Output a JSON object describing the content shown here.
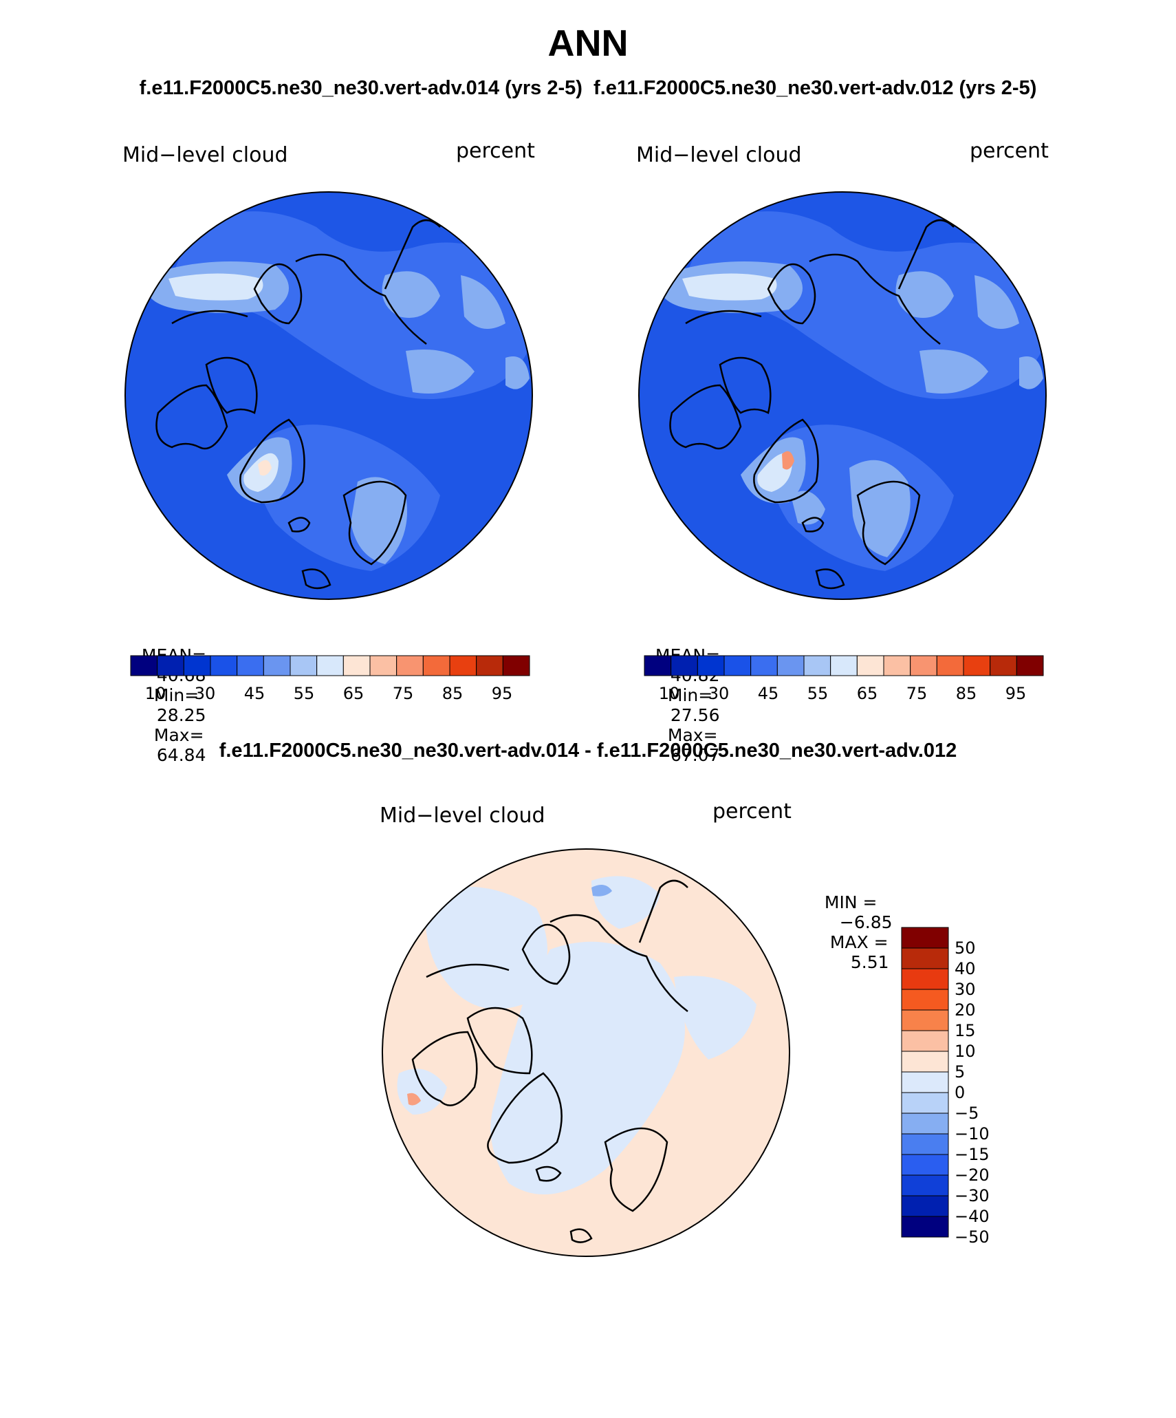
{
  "header": {
    "title": "ANN",
    "subtitle": "f.e11.F2000C5.ne30_ne30.vert-adv.014 (yrs 2-5)  f.e11.F2000C5.ne30_ne30.vert-adv.012 (yrs 2-5)",
    "diff_title": "f.e11.F2000C5.ne30_ne30.vert-adv.014 - f.e11.F2000C5.ne30_ne30.vert-adv.012"
  },
  "panels": [
    {
      "variable": "Mid−level cloud",
      "units": "percent",
      "stats": {
        "mean_label": "MEAN=",
        "mean": "40.68",
        "min_label": "Min=",
        "min": "28.25",
        "max_label": "Max=",
        "max": "64.84"
      },
      "colorbar": {
        "colors": [
          "#00007f",
          "#0020b0",
          "#0035d0",
          "#1a52e8",
          "#3a6ef0",
          "#6a95f0",
          "#a8c6f5",
          "#d8e8fb",
          "#fde5d5",
          "#fbc0a4",
          "#f89470",
          "#f36a3a",
          "#e84010",
          "#b82a0a",
          "#800000"
        ],
        "tick_labels": [
          "10",
          "30",
          "45",
          "55",
          "65",
          "75",
          "85",
          "95"
        ]
      }
    },
    {
      "variable": "Mid−level cloud",
      "units": "percent",
      "stats": {
        "mean_label": "MEAN=",
        "mean": "40.82",
        "min_label": "Min=",
        "min": "27.56",
        "max_label": "Max=",
        "max": "67.07"
      },
      "colorbar": {
        "colors": [
          "#00007f",
          "#0020b0",
          "#0035d0",
          "#1a52e8",
          "#3a6ef0",
          "#6a95f0",
          "#a8c6f5",
          "#d8e8fb",
          "#fde5d5",
          "#fbc0a4",
          "#f89470",
          "#f36a3a",
          "#e84010",
          "#b82a0a",
          "#800000"
        ],
        "tick_labels": [
          "10",
          "30",
          "45",
          "55",
          "65",
          "75",
          "85",
          "95"
        ]
      }
    }
  ],
  "diff_panel": {
    "variable": "Mid−level cloud",
    "units": "percent",
    "minmax": {
      "min_label": "MIN =",
      "min": "−6.85",
      "max_label": "MAX =",
      "max": "5.51"
    },
    "colorbar": {
      "colors": [
        "#800000",
        "#b82a0a",
        "#e83a10",
        "#f55a20",
        "#f8824a",
        "#fbc0a4",
        "#fde5d5",
        "#dce9fb",
        "#b8d2f8",
        "#86aef2",
        "#4a7ef0",
        "#2a5ef0",
        "#1040d8",
        "#0020b0",
        "#00007f"
      ],
      "labels": [
        "50",
        "40",
        "30",
        "20",
        "15",
        "10",
        "5",
        "0",
        "−5",
        "−10",
        "−15",
        "−20",
        "−30",
        "−40",
        "−50"
      ]
    }
  },
  "colors": {
    "map_base_blue": "#1e56e6",
    "map_mid_blue": "#3a6ef0",
    "map_light_blue": "#86aef2",
    "map_pale_blue": "#d8e8fb",
    "diff_base_peach": "#fde5d5",
    "diff_pale_blue": "#dce9fb"
  }
}
